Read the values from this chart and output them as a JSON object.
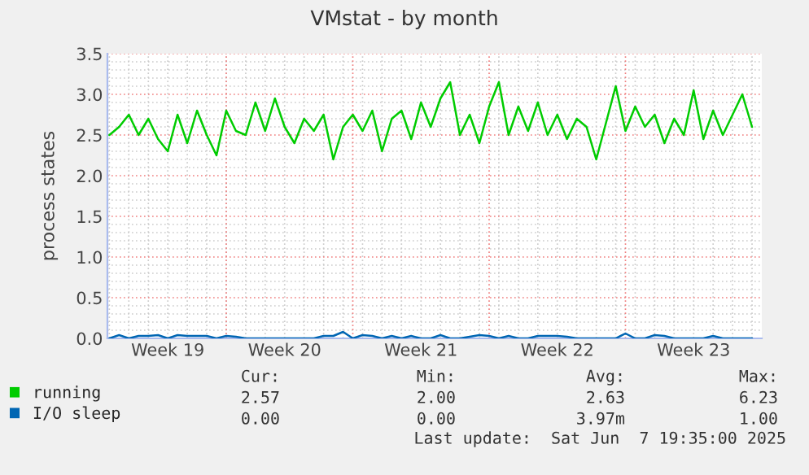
{
  "chart_data": {
    "type": "line",
    "title": "VMstat - by month",
    "ylabel": "process states",
    "categories": [
      null,
      null,
      null,
      null,
      null,
      null,
      "Week 19",
      null,
      null,
      null,
      null,
      null,
      null,
      null,
      null,
      null,
      null,
      null,
      "Week 20",
      null,
      null,
      null,
      null,
      null,
      null,
      null,
      null,
      null,
      null,
      null,
      null,
      null,
      "Week 21",
      null,
      null,
      null,
      null,
      null,
      null,
      null,
      null,
      null,
      null,
      null,
      null,
      null,
      "Week 22",
      null,
      null,
      null,
      null,
      null,
      null,
      null,
      null,
      null,
      null,
      null,
      null,
      null,
      "Week 23",
      null,
      null,
      null,
      null,
      null,
      null
    ],
    "ylim": [
      0,
      3.5
    ],
    "yticks": [
      {
        "value": 0,
        "label": "0.0"
      },
      {
        "value": 0.5,
        "label": "0.5"
      },
      {
        "value": 1,
        "label": "1.0"
      },
      {
        "value": 1.5,
        "label": "1.5"
      },
      {
        "value": 2,
        "label": "2.0"
      },
      {
        "value": 2.5,
        "label": "2.5"
      },
      {
        "value": 3,
        "label": "3.0"
      },
      {
        "value": 3.5,
        "label": "3.5"
      }
    ],
    "grid": true,
    "legend": "bottom left",
    "marker": "none",
    "line_style": "solid",
    "series": [
      {
        "name": "running",
        "color": "#00cc00",
        "values": [
          2.5,
          2.6,
          2.75,
          2.5,
          2.7,
          2.45,
          2.3,
          2.75,
          2.4,
          2.8,
          2.5,
          2.25,
          2.8,
          2.55,
          2.5,
          2.9,
          2.55,
          2.95,
          2.6,
          2.4,
          2.7,
          2.55,
          2.75,
          2.2,
          2.6,
          2.75,
          2.55,
          2.8,
          2.3,
          2.7,
          2.8,
          2.45,
          2.9,
          2.6,
          2.95,
          3.15,
          2.5,
          2.75,
          2.4,
          2.85,
          3.15,
          2.5,
          2.85,
          2.55,
          2.9,
          2.5,
          2.75,
          2.45,
          2.7,
          2.6,
          2.2,
          2.65,
          3.1,
          2.55,
          2.85,
          2.6,
          2.75,
          2.4,
          2.7,
          2.5,
          3.05,
          2.45,
          2.8,
          2.5,
          2.75,
          3.0,
          2.6
        ]
      },
      {
        "name": "I/O sleep",
        "color": "#0066b3",
        "values": [
          0,
          0.04,
          0,
          0.03,
          0.03,
          0.04,
          0,
          0.04,
          0.03,
          0.03,
          0.03,
          0,
          0.03,
          0.02,
          0,
          0,
          0,
          0,
          0,
          0,
          0,
          0,
          0.03,
          0.03,
          0.08,
          0,
          0.04,
          0.03,
          0,
          0.03,
          0,
          0.03,
          0,
          0,
          0.04,
          0,
          0,
          0.02,
          0.04,
          0.03,
          0,
          0.03,
          0,
          0,
          0.03,
          0.03,
          0.03,
          0.02,
          0,
          0,
          0,
          0,
          0,
          0.06,
          0,
          0,
          0.04,
          0.03,
          0,
          0,
          0,
          0,
          0.03,
          0,
          0,
          0,
          0
        ]
      }
    ],
    "annotations": [
      "Cur:",
      "Min:",
      "Avg:",
      "Max:",
      "2.57",
      "2.00",
      "2.63",
      "6.23",
      "0.00",
      "0.00",
      "3.97m",
      "1.00",
      "Last update:  Sat Jun  7 19:35:00 2025"
    ]
  }
}
